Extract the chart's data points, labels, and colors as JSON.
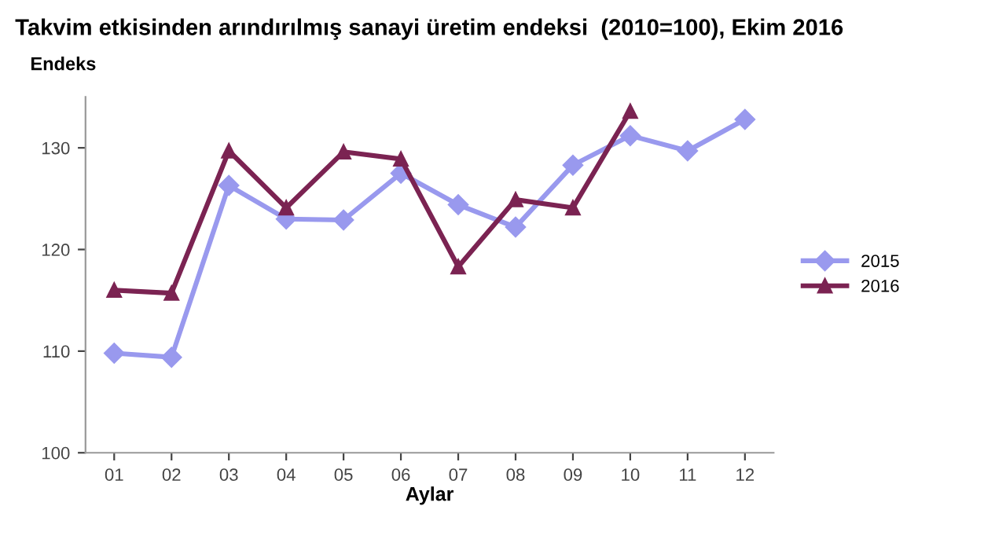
{
  "chart_data": {
    "type": "line",
    "title": "Takvim etkisinden arındırılmış sanayi üretim endeksi  (2010=100), Ekim 2016",
    "ylabel": "Endeks",
    "xlabel": "Aylar",
    "categories": [
      "01",
      "02",
      "03",
      "04",
      "05",
      "06",
      "07",
      "08",
      "09",
      "10",
      "11",
      "12"
    ],
    "series": [
      {
        "name": "2015",
        "color": "#9999ee",
        "marker": "diamond",
        "values": [
          109.8,
          109.4,
          126.3,
          123.0,
          122.9,
          127.5,
          124.4,
          122.2,
          128.3,
          131.2,
          129.7,
          132.8
        ]
      },
      {
        "name": "2016",
        "color": "#7b2352",
        "marker": "triangle",
        "values": [
          116.0,
          115.7,
          129.7,
          124.1,
          129.6,
          128.9,
          118.3,
          124.9,
          124.1,
          133.6,
          null,
          null
        ]
      }
    ],
    "ylim": [
      100,
      135
    ],
    "yticks": [
      100,
      110,
      120,
      130
    ],
    "grid": false,
    "legend": "right"
  }
}
